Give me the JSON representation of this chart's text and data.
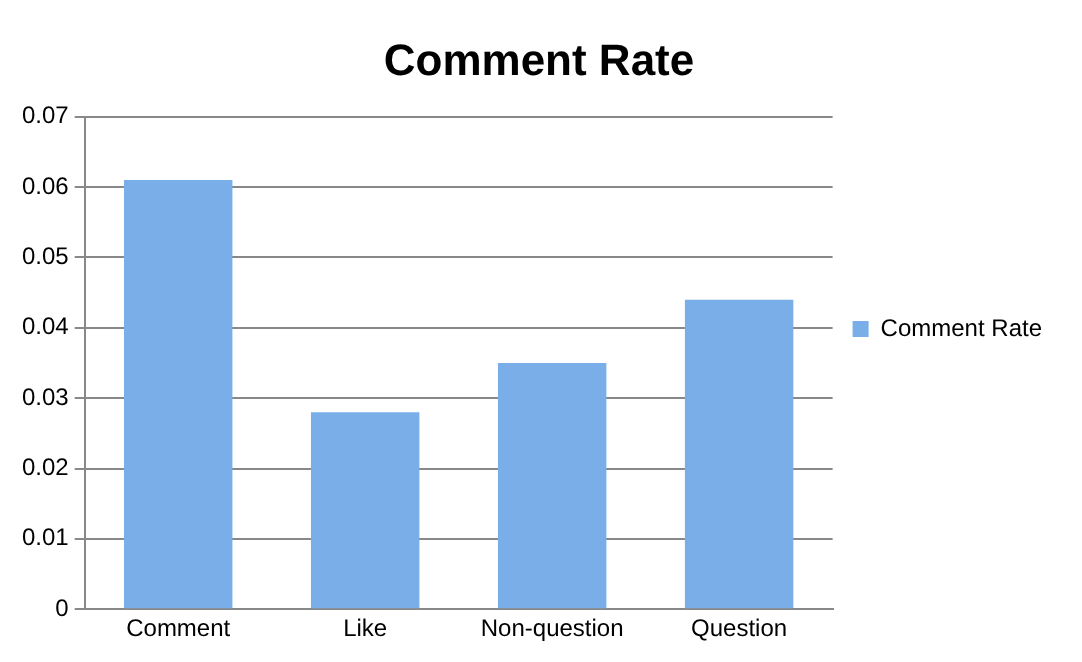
{
  "chart_data": {
    "type": "bar",
    "title": "Comment Rate",
    "categories": [
      "Comment",
      "Like",
      "Non-question",
      "Question"
    ],
    "series": [
      {
        "name": "Comment Rate",
        "color": "#79aee8",
        "values": [
          0.061,
          0.028,
          0.035,
          0.044
        ]
      }
    ],
    "ylim": [
      0,
      0.07
    ],
    "yticks": [
      0,
      0.01,
      0.02,
      0.03,
      0.04,
      0.05,
      0.06,
      0.07
    ],
    "grid": "y",
    "legend": "right"
  }
}
